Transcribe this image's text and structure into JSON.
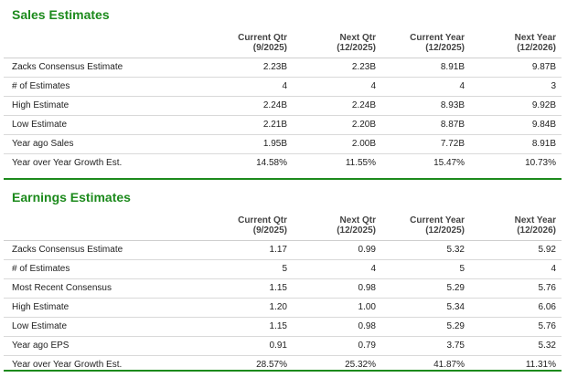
{
  "sales": {
    "title": "Sales Estimates",
    "columns": [
      {
        "line1": "Current Qtr",
        "line2": "(9/2025)"
      },
      {
        "line1": "Next Qtr",
        "line2": "(12/2025)"
      },
      {
        "line1": "Current Year",
        "line2": "(12/2025)"
      },
      {
        "line1": "Next Year",
        "line2": "(12/2026)"
      }
    ],
    "rows": [
      {
        "label": "Zacks Consensus Estimate",
        "values": [
          "2.23B",
          "2.23B",
          "8.91B",
          "9.87B"
        ]
      },
      {
        "label": "# of Estimates",
        "values": [
          "4",
          "4",
          "4",
          "3"
        ]
      },
      {
        "label": "High Estimate",
        "values": [
          "2.24B",
          "2.24B",
          "8.93B",
          "9.92B"
        ]
      },
      {
        "label": "Low Estimate",
        "values": [
          "2.21B",
          "2.20B",
          "8.87B",
          "9.84B"
        ]
      },
      {
        "label": "Year ago Sales",
        "values": [
          "1.95B",
          "2.00B",
          "7.72B",
          "8.91B"
        ]
      },
      {
        "label": "Year over Year Growth Est.",
        "values": [
          "14.58%",
          "11.55%",
          "15.47%",
          "10.73%"
        ]
      }
    ]
  },
  "earnings": {
    "title": "Earnings Estimates",
    "columns": [
      {
        "line1": "Current Qtr",
        "line2": "(9/2025)"
      },
      {
        "line1": "Next Qtr",
        "line2": "(12/2025)"
      },
      {
        "line1": "Current Year",
        "line2": "(12/2025)"
      },
      {
        "line1": "Next Year",
        "line2": "(12/2026)"
      }
    ],
    "rows": [
      {
        "label": "Zacks Consensus Estimate",
        "values": [
          "1.17",
          "0.99",
          "5.32",
          "5.92"
        ]
      },
      {
        "label": "# of Estimates",
        "values": [
          "5",
          "4",
          "5",
          "4"
        ]
      },
      {
        "label": "Most Recent Consensus",
        "values": [
          "1.15",
          "0.98",
          "5.29",
          "5.76"
        ]
      },
      {
        "label": "High Estimate",
        "values": [
          "1.20",
          "1.00",
          "5.34",
          "6.06"
        ]
      },
      {
        "label": "Low Estimate",
        "values": [
          "1.15",
          "0.98",
          "5.29",
          "5.76"
        ]
      },
      {
        "label": "Year ago EPS",
        "values": [
          "0.91",
          "0.79",
          "3.75",
          "5.32"
        ]
      },
      {
        "label": "Year over Year Growth Est.",
        "values": [
          "28.57%",
          "25.32%",
          "41.87%",
          "11.31%"
        ]
      }
    ]
  },
  "colors": {
    "accent": "#1c8a1c",
    "rule": "#d9d9d9"
  }
}
